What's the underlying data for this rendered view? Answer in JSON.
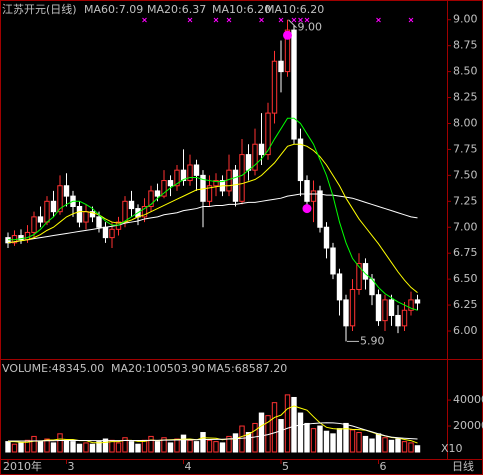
{
  "chart_data": [
    {
      "type": "candlestick",
      "title": "江苏开元(日线)",
      "header": [
        {
          "text": "MA60:7.09",
          "color": "#ffffff"
        },
        {
          "text": "MA20:6.37",
          "color": "#ffff00"
        },
        {
          "text": "MA10:6.20",
          "color": "#ff00ff"
        },
        {
          "text": "MA10:6.20",
          "color": "#00ff00"
        }
      ],
      "up_color": "#ff3232",
      "down_color": "#ffffff",
      "open": [
        6.9,
        6.85,
        6.92,
        6.88,
        6.95,
        7.1,
        7.05,
        7.25,
        7.15,
        7.4,
        7.3,
        7.2,
        7.05,
        7.15,
        7.1,
        7.0,
        6.9,
        6.98,
        7.05,
        7.25,
        7.18,
        7.1,
        7.2,
        7.35,
        7.3,
        7.45,
        7.4,
        7.55,
        7.45,
        7.6,
        7.5,
        7.25,
        7.4,
        7.45,
        7.35,
        7.55,
        7.25,
        7.7,
        7.55,
        7.8,
        7.7,
        8.1,
        8.6,
        8.5,
        8.9,
        7.85,
        7.45,
        7.25,
        7.35,
        7.0,
        6.8,
        6.55,
        6.3,
        6.05,
        6.4,
        6.65,
        6.5,
        6.35,
        6.1,
        6.3,
        6.15,
        6.05,
        6.2,
        6.3
      ],
      "high": [
        6.95,
        6.97,
        6.98,
        7.02,
        7.15,
        7.2,
        7.3,
        7.35,
        7.5,
        7.52,
        7.35,
        7.25,
        7.22,
        7.2,
        7.15,
        7.05,
        7.05,
        7.1,
        7.3,
        7.35,
        7.22,
        7.28,
        7.4,
        7.42,
        7.55,
        7.5,
        7.6,
        7.75,
        7.7,
        7.65,
        7.55,
        7.5,
        7.52,
        7.5,
        7.7,
        7.6,
        7.85,
        7.8,
        7.95,
        8.1,
        8.2,
        8.7,
        8.8,
        9.0,
        8.95,
        7.95,
        7.5,
        7.45,
        7.4,
        7.05,
        6.85,
        6.6,
        6.35,
        6.5,
        6.75,
        6.7,
        6.55,
        6.4,
        6.35,
        6.35,
        6.25,
        6.28,
        6.38,
        6.35
      ],
      "low": [
        6.8,
        6.82,
        6.84,
        6.85,
        6.9,
        7.0,
        7.02,
        7.1,
        7.12,
        7.2,
        7.1,
        7.0,
        6.98,
        7.05,
        6.95,
        6.85,
        6.8,
        6.92,
        7.0,
        7.1,
        7.02,
        7.05,
        7.15,
        7.25,
        7.28,
        7.3,
        7.35,
        7.4,
        7.4,
        7.35,
        7.0,
        7.2,
        7.3,
        7.3,
        7.3,
        7.2,
        7.22,
        7.45,
        7.5,
        7.6,
        7.65,
        8.0,
        8.3,
        8.45,
        7.8,
        7.3,
        7.15,
        7.05,
        6.95,
        6.7,
        6.5,
        6.15,
        5.9,
        6.0,
        6.35,
        6.4,
        6.25,
        6.05,
        6.0,
        6.05,
        5.98,
        6.0,
        6.15,
        6.2
      ],
      "close": [
        6.85,
        6.92,
        6.88,
        6.95,
        7.1,
        7.05,
        7.25,
        7.15,
        7.4,
        7.3,
        7.2,
        7.05,
        7.15,
        7.1,
        7.0,
        6.9,
        6.98,
        7.05,
        7.25,
        7.18,
        7.1,
        7.2,
        7.35,
        7.3,
        7.45,
        7.4,
        7.55,
        7.45,
        7.6,
        7.5,
        7.25,
        7.4,
        7.45,
        7.35,
        7.55,
        7.25,
        7.7,
        7.55,
        7.8,
        7.7,
        8.1,
        8.6,
        8.5,
        8.9,
        7.85,
        7.45,
        7.25,
        7.35,
        7.0,
        6.8,
        6.55,
        6.3,
        6.05,
        6.4,
        6.65,
        6.5,
        6.35,
        6.1,
        6.3,
        6.15,
        6.05,
        6.2,
        6.3,
        6.27
      ],
      "series": [
        {
          "name": "MA60",
          "color": "#ffffff",
          "values": [
            6.85,
            6.86,
            6.87,
            6.88,
            6.89,
            6.9,
            6.91,
            6.92,
            6.93,
            6.94,
            6.95,
            6.96,
            6.97,
            6.98,
            6.99,
            7.0,
            7.01,
            7.02,
            7.04,
            7.05,
            7.06,
            7.08,
            7.09,
            7.1,
            7.12,
            7.13,
            7.14,
            7.16,
            7.17,
            7.18,
            7.2,
            7.2,
            7.21,
            7.21,
            7.22,
            7.22,
            7.23,
            7.24,
            7.24,
            7.25,
            7.26,
            7.27,
            7.28,
            7.3,
            7.31,
            7.32,
            7.32,
            7.32,
            7.32,
            7.31,
            7.31,
            7.3,
            7.29,
            7.28,
            7.26,
            7.24,
            7.22,
            7.2,
            7.18,
            7.16,
            7.14,
            7.12,
            7.1,
            7.09
          ]
        },
        {
          "name": "MA20",
          "color": "#ffff00",
          "values": [
            6.85,
            6.86,
            6.87,
            6.88,
            6.9,
            6.93,
            6.97,
            7.0,
            7.05,
            7.1,
            7.13,
            7.15,
            7.15,
            7.14,
            7.12,
            7.08,
            7.05,
            7.04,
            7.05,
            7.07,
            7.1,
            7.12,
            7.15,
            7.18,
            7.21,
            7.24,
            7.27,
            7.3,
            7.33,
            7.36,
            7.37,
            7.38,
            7.39,
            7.4,
            7.4,
            7.41,
            7.42,
            7.44,
            7.46,
            7.5,
            7.56,
            7.62,
            7.7,
            7.78,
            7.8,
            7.8,
            7.78,
            7.74,
            7.68,
            7.6,
            7.5,
            7.4,
            7.28,
            7.18,
            7.08,
            7.0,
            6.92,
            6.84,
            6.75,
            6.66,
            6.57,
            6.49,
            6.42,
            6.37
          ]
        },
        {
          "name": "MA10",
          "color": "#00ff00",
          "values": [
            6.88,
            6.88,
            6.89,
            6.9,
            6.93,
            6.98,
            7.05,
            7.1,
            7.18,
            7.22,
            7.25,
            7.25,
            7.22,
            7.18,
            7.12,
            7.06,
            7.02,
            7.02,
            7.06,
            7.1,
            7.14,
            7.18,
            7.22,
            7.28,
            7.33,
            7.38,
            7.42,
            7.46,
            7.48,
            7.48,
            7.46,
            7.45,
            7.44,
            7.44,
            7.46,
            7.48,
            7.5,
            7.55,
            7.6,
            7.66,
            7.74,
            7.85,
            7.95,
            8.05,
            8.05,
            8.0,
            7.9,
            7.8,
            7.65,
            7.5,
            7.3,
            7.05,
            6.85,
            6.7,
            6.62,
            6.55,
            6.5,
            6.42,
            6.36,
            6.32,
            6.28,
            6.25,
            6.22,
            6.2
          ]
        }
      ],
      "markers": [
        {
          "index": 43,
          "value": 8.85,
          "color": "#ff00ff"
        },
        {
          "index": 46,
          "value": 7.18,
          "color": "#ff00ff"
        }
      ],
      "events": [
        21,
        28,
        32,
        34,
        39,
        42,
        44,
        45,
        46,
        57,
        62
      ],
      "annotations": [
        {
          "text": "9.00",
          "index": 43,
          "value": 9
        },
        {
          "text": "5.90",
          "index": 52,
          "value": 5.9
        }
      ],
      "ylim": [
        5.74,
        9.19
      ],
      "yticks": [
        {
          "value": 6,
          "label": "6.00"
        },
        {
          "value": 6.25,
          "label": "6.25"
        },
        {
          "value": 6.5,
          "label": "6.50"
        },
        {
          "value": 6.75,
          "label": "6.75"
        },
        {
          "value": 7,
          "label": "7.00"
        },
        {
          "value": 7.25,
          "label": "7.25"
        },
        {
          "value": 7.5,
          "label": "7.50"
        },
        {
          "value": 7.75,
          "label": "7.75"
        },
        {
          "value": 8,
          "label": "8.00"
        },
        {
          "value": 8.25,
          "label": "8.25"
        },
        {
          "value": 8.5,
          "label": "8.50"
        },
        {
          "value": 8.75,
          "label": "8.75"
        },
        {
          "value": 9,
          "label": "9.00"
        }
      ]
    },
    {
      "type": "volume",
      "header": [
        {
          "text": "VOLUME:48345.00",
          "color": "#ffffff"
        },
        {
          "text": "MA20:100503.90",
          "color": "#ffffff"
        },
        {
          "text": "MA5:68587.20",
          "color": "#ffff00"
        }
      ],
      "values": [
        8000,
        6000,
        7000,
        9000,
        12000,
        8000,
        10000,
        7000,
        14000,
        9000,
        8000,
        6000,
        7000,
        6000,
        8000,
        10000,
        9000,
        7000,
        11000,
        8000,
        6000,
        9000,
        12000,
        8000,
        11000,
        7000,
        10000,
        13000,
        9000,
        8000,
        15000,
        9000,
        8000,
        7000,
        12000,
        14000,
        20000,
        15000,
        22000,
        30000,
        28000,
        38000,
        25000,
        44000,
        42000,
        30000,
        22000,
        18000,
        20000,
        16000,
        14000,
        18000,
        22000,
        17000,
        15000,
        12000,
        10000,
        14000,
        11000,
        9000,
        10000,
        8000,
        7000,
        4835
      ],
      "series": [
        {
          "name": "MA5",
          "color": "#ffff00",
          "values": [
            8000,
            8000,
            7500,
            7500,
            8400,
            8400,
            9200,
            9200,
            10000,
            9600,
            9600,
            8800,
            8800,
            7200,
            7000,
            7400,
            8000,
            8000,
            9000,
            9000,
            8200,
            8200,
            9200,
            8800,
            9200,
            9400,
            9600,
            9800,
            10000,
            9400,
            11000,
            10800,
            10600,
            9400,
            10200,
            10000,
            12000,
            13600,
            16600,
            20200,
            23000,
            26600,
            28400,
            33400,
            35400,
            33800,
            32200,
            27200,
            22400,
            19000,
            18000,
            17600,
            18000,
            17400,
            17200,
            16800,
            15200,
            13600,
            12400,
            11200,
            10800,
            9600,
            8800,
            6860
          ]
        },
        {
          "name": "MA20",
          "color": "#ffffff",
          "values": [
            8500,
            8500,
            8500,
            8500,
            8600,
            8600,
            8700,
            8700,
            8900,
            8900,
            9000,
            8900,
            8900,
            8800,
            8800,
            8800,
            8800,
            8800,
            8900,
            8900,
            8900,
            8900,
            9000,
            9000,
            9100,
            9100,
            9200,
            9300,
            9300,
            9400,
            9600,
            9600,
            9700,
            9800,
            10000,
            10300,
            10600,
            11000,
            11600,
            12400,
            13400,
            14800,
            16400,
            18300,
            19800,
            20800,
            21500,
            22000,
            22300,
            22500,
            22400,
            22000,
            21200,
            20000,
            18500,
            17000,
            15500,
            14000,
            12500,
            11500,
            11000,
            10600,
            10300,
            10050
          ]
        }
      ],
      "ylim": [
        0,
        57000
      ],
      "yticks": [
        20000,
        40000
      ],
      "scale_label": "X10",
      "xticks": [
        {
          "value": 0,
          "label": "2010年"
        },
        {
          "value": 9,
          "label": "3"
        },
        {
          "value": 27,
          "label": "4"
        },
        {
          "value": 42,
          "label": "5"
        },
        {
          "value": 57,
          "label": "6"
        }
      ],
      "period_label": "日线"
    }
  ]
}
